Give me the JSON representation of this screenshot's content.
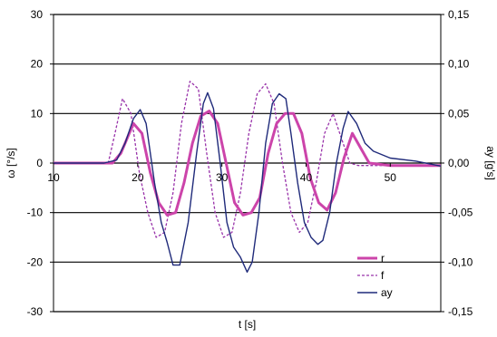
{
  "chart_data": {
    "type": "line",
    "title": "",
    "xlabel": "t [s]",
    "ylabel_left": "ω [°/s]",
    "ylabel_right": "ay [g's]",
    "xlim": [
      10,
      56
    ],
    "ylim_left": [
      -30,
      30
    ],
    "ylim_right": [
      -0.15,
      0.15
    ],
    "x_ticks": [
      "10",
      "20",
      "30",
      "40",
      "50"
    ],
    "y_ticks_left": [
      "30",
      "20",
      "10",
      "0",
      "-10",
      "-20",
      "-30"
    ],
    "y_ticks_right": [
      "0,15",
      "0,10",
      "0,05",
      "0,00",
      "-0,05",
      "-0,10",
      "-0,15"
    ],
    "grid": "horizontal",
    "legend_position": "bottom-right",
    "series": [
      {
        "name": "r",
        "axis": "left",
        "color": "#cc44aa",
        "style": "solid-thick",
        "x": [
          10,
          17,
          18,
          19,
          19.5,
          20.5,
          21.5,
          22.5,
          23.5,
          24.5,
          25.5,
          26.5,
          27.5,
          28.5,
          29.5,
          30.5,
          31.5,
          32.5,
          33.5,
          34.5,
          35.5,
          36.5,
          37.5,
          38.5,
          39.5,
          40.5,
          41.5,
          42.5,
          43.5,
          44.5,
          45.5,
          46.5,
          47.5,
          50,
          56
        ],
        "y": [
          0,
          0,
          2,
          6,
          8,
          6,
          -2,
          -8,
          -10.5,
          -10,
          -4,
          4,
          9.5,
          10.5,
          8,
          0,
          -8,
          -10.5,
          -10,
          -7,
          2,
          8,
          10,
          10,
          6,
          -3,
          -8,
          -9.5,
          -6,
          1,
          6,
          3,
          0,
          -0.5,
          -0.5
        ]
      },
      {
        "name": "f",
        "axis": "left",
        "color": "#9933aa",
        "style": "dashed",
        "x": [
          10,
          16.5,
          17.3,
          18.2,
          19.2,
          20.2,
          21.2,
          22.2,
          23.2,
          24.2,
          25.2,
          26.2,
          27.2,
          28.2,
          29.2,
          30.2,
          31.2,
          32.2,
          33.2,
          34.2,
          35.2,
          36.2,
          37.2,
          38.2,
          39.2,
          40.2,
          41.2,
          42.2,
          43.2,
          44.2,
          45.2,
          46.2,
          47.5,
          50,
          56
        ],
        "y": [
          0,
          0,
          6,
          13,
          10,
          -2,
          -10,
          -15,
          -14,
          -6,
          8,
          16.5,
          15,
          2,
          -10,
          -15,
          -14,
          -6,
          6,
          14,
          16,
          12,
          0,
          -10,
          -14,
          -12,
          -4,
          6,
          10,
          5,
          0,
          -0.5,
          -0.5,
          -0.5,
          -0.5
        ]
      },
      {
        "name": "ay",
        "axis": "right",
        "color": "#1f2a7a",
        "style": "solid",
        "x": [
          10,
          16,
          17.5,
          18.5,
          19.5,
          20.3,
          21,
          22,
          22.8,
          23.5,
          24.2,
          25,
          26,
          27,
          27.8,
          28.3,
          29,
          29.8,
          30.6,
          31.4,
          32.2,
          33,
          33.6,
          34.4,
          35.2,
          36,
          36.8,
          37.6,
          38.2,
          39,
          39.8,
          40.6,
          41.4,
          42,
          42.8,
          43.6,
          44.4,
          45,
          46,
          47,
          48,
          50,
          53,
          56
        ],
        "y": [
          0,
          0,
          0.003,
          0.02,
          0.045,
          0.054,
          0.04,
          -0.02,
          -0.06,
          -0.08,
          -0.103,
          -0.103,
          -0.06,
          0.01,
          0.06,
          0.071,
          0.055,
          0,
          -0.06,
          -0.085,
          -0.095,
          -0.11,
          -0.1,
          -0.05,
          0.02,
          0.06,
          0.07,
          0.065,
          0.03,
          -0.02,
          -0.06,
          -0.075,
          -0.082,
          -0.078,
          -0.05,
          0,
          0.035,
          0.052,
          0.04,
          0.02,
          0.012,
          0.005,
          0.002,
          -0.003
        ]
      }
    ]
  }
}
